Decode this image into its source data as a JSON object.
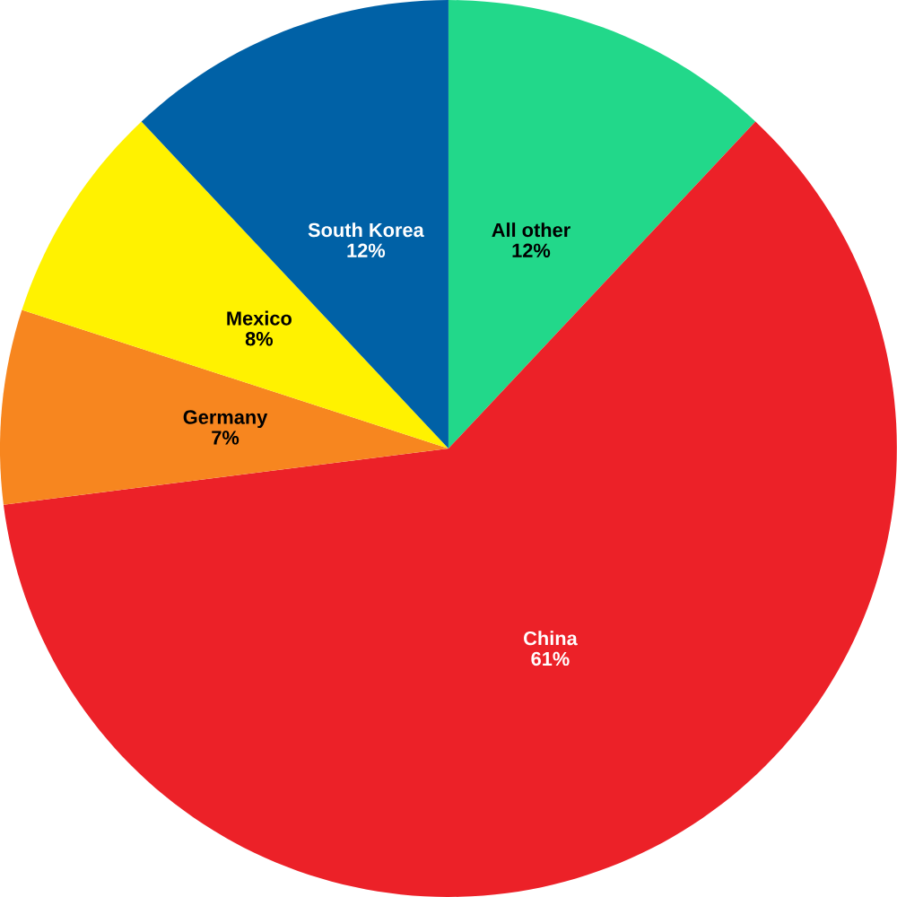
{
  "chart_data": {
    "type": "pie",
    "categories": [
      "All other",
      "China",
      "Germany",
      "Mexico",
      "South Korea"
    ],
    "values": [
      12,
      61,
      7,
      8,
      12
    ],
    "value_labels": [
      "12%",
      "61%",
      "7%",
      "8%",
      "12%"
    ],
    "colors": [
      "#22d88a",
      "#ec2128",
      "#f7861f",
      "#fff200",
      "#0061a6"
    ]
  }
}
